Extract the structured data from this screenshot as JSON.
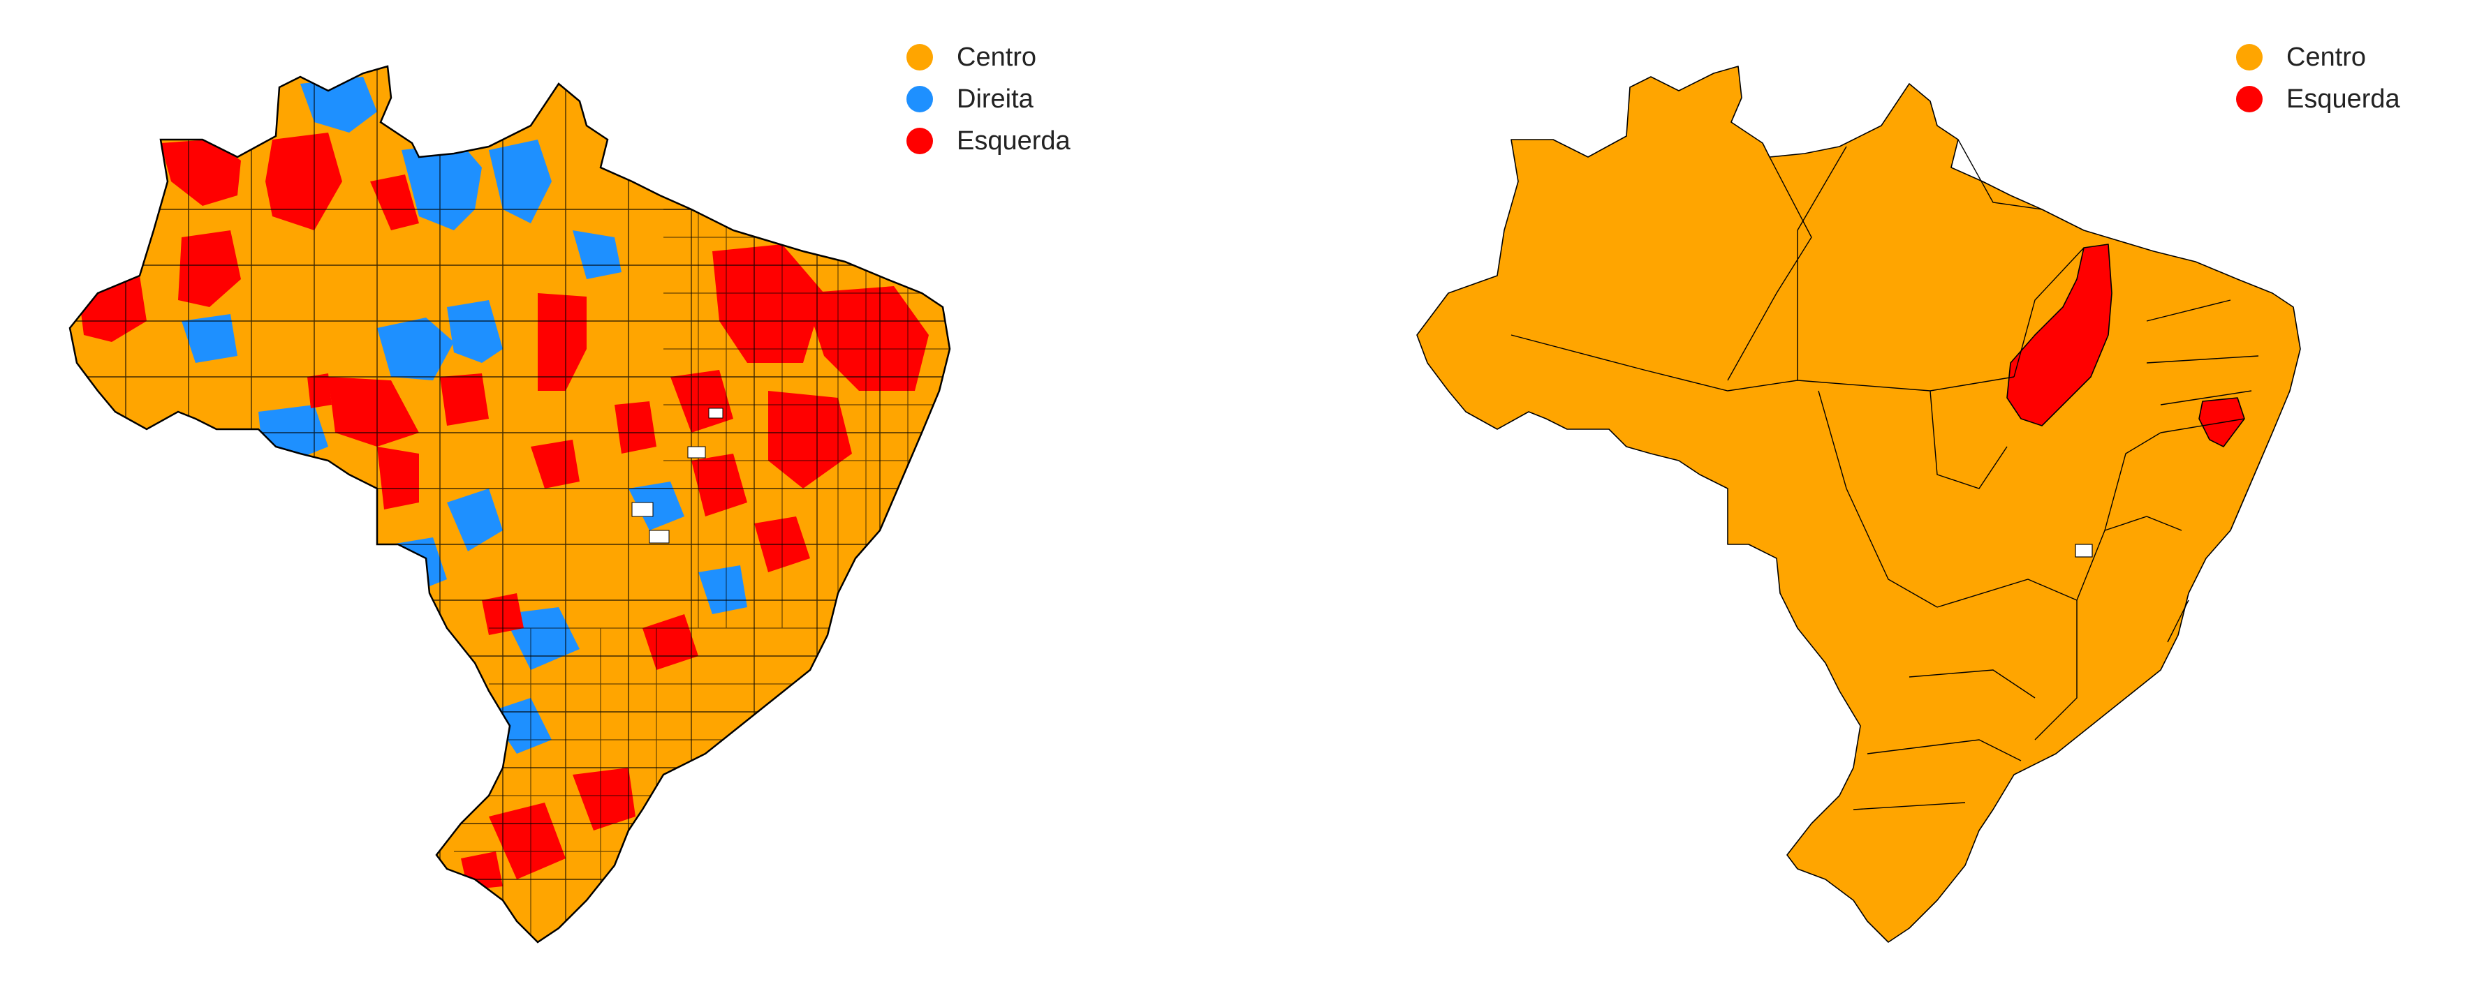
{
  "colors": {
    "Centro": "#FFA500",
    "Direita": "#1E90FF",
    "Esquerda": "#FF0000",
    "border": "#000000",
    "background": "#FFFFFF"
  },
  "maps": [
    {
      "level": "municipal",
      "legend": [
        {
          "label": "Centro",
          "color": "#FFA500"
        },
        {
          "label": "Direita",
          "color": "#1E90FF"
        },
        {
          "label": "Esquerda",
          "color": "#FF0000"
        }
      ]
    },
    {
      "level": "state",
      "legend": [
        {
          "label": "Centro",
          "color": "#FFA500"
        },
        {
          "label": "Esquerda",
          "color": "#FF0000"
        }
      ]
    }
  ]
}
